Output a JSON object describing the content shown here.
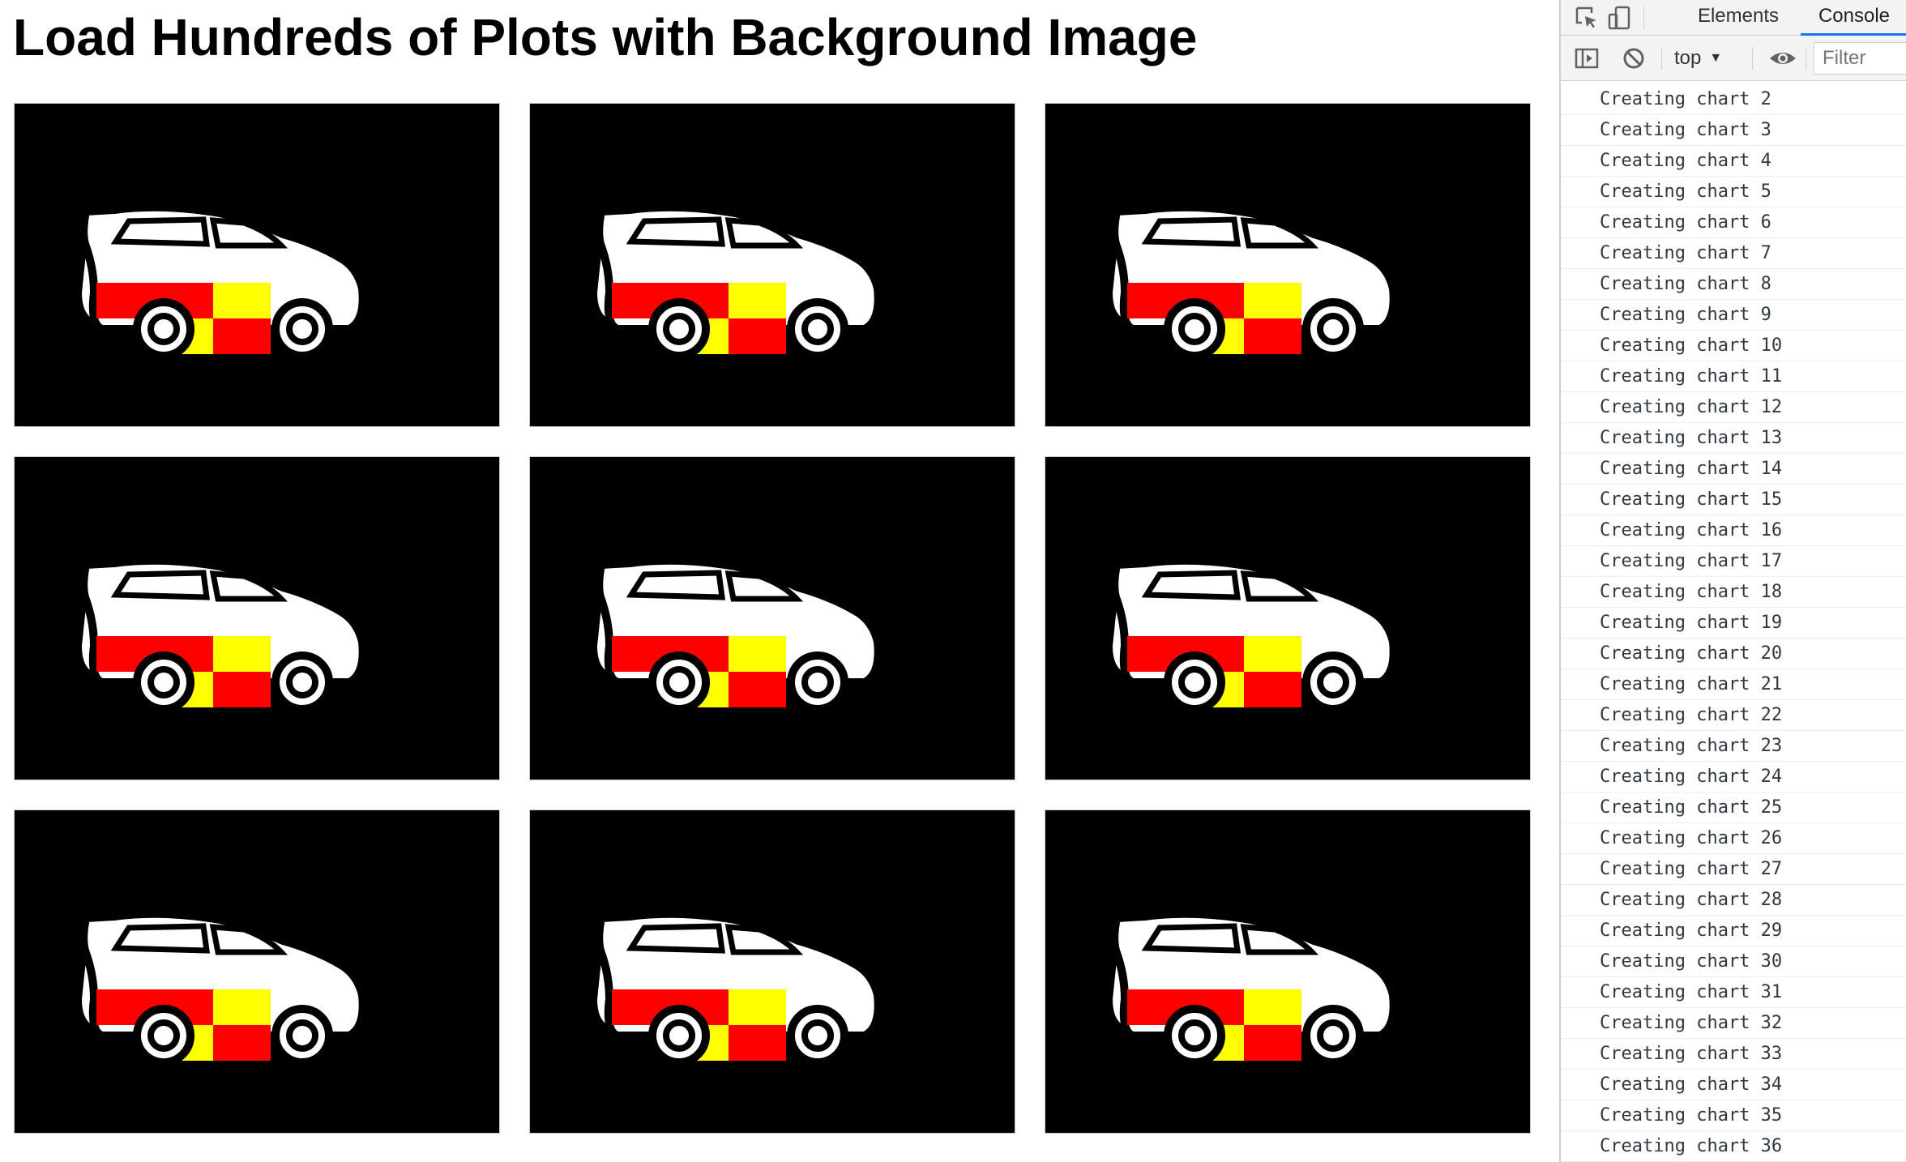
{
  "page": {
    "title": "Load Hundreds of Plots with Background Image",
    "charts": [
      {
        "id": 1
      },
      {
        "id": 2
      },
      {
        "id": 3
      },
      {
        "id": 4
      },
      {
        "id": 5
      },
      {
        "id": 6
      },
      {
        "id": 7
      },
      {
        "id": 8
      },
      {
        "id": 9
      }
    ],
    "background_image": "car-icon",
    "colors": {
      "chart_background": "#000000",
      "car_body": "#ffffff",
      "checker_red": "#ff0000",
      "checker_yellow": "#ffff00"
    }
  },
  "devtools": {
    "tabs": [
      {
        "label": "Elements",
        "active": false
      },
      {
        "label": "Console",
        "active": true
      }
    ],
    "context": "top",
    "filter_placeholder": "Filter",
    "console_lines": [
      "Creating chart 2",
      "Creating chart 3",
      "Creating chart 4",
      "Creating chart 5",
      "Creating chart 6",
      "Creating chart 7",
      "Creating chart 8",
      "Creating chart 9",
      "Creating chart 10",
      "Creating chart 11",
      "Creating chart 12",
      "Creating chart 13",
      "Creating chart 14",
      "Creating chart 15",
      "Creating chart 16",
      "Creating chart 17",
      "Creating chart 18",
      "Creating chart 19",
      "Creating chart 20",
      "Creating chart 21",
      "Creating chart 22",
      "Creating chart 23",
      "Creating chart 24",
      "Creating chart 25",
      "Creating chart 26",
      "Creating chart 27",
      "Creating chart 28",
      "Creating chart 29",
      "Creating chart 30",
      "Creating chart 31",
      "Creating chart 32",
      "Creating chart 33",
      "Creating chart 34",
      "Creating chart 35",
      "Creating chart 36"
    ]
  }
}
